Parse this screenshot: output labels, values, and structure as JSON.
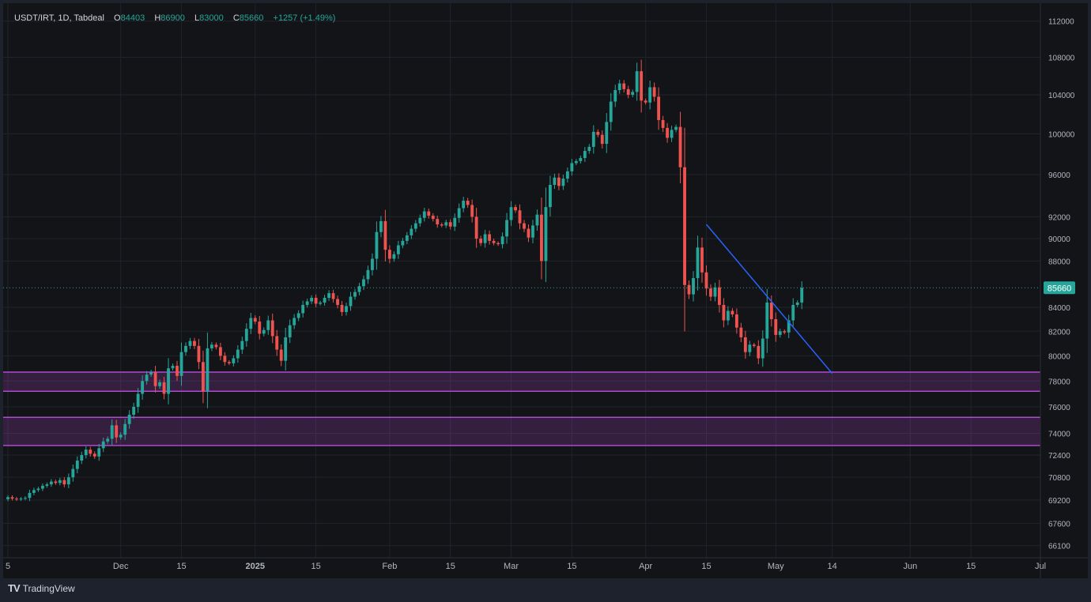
{
  "header": {
    "symbol": "USDT/IRT, 1D, Tabdeal",
    "open_label": "O",
    "open": "84403",
    "high_label": "H",
    "high": "86900",
    "low_label": "L",
    "low": "83000",
    "close_label": "C",
    "close": "85660",
    "change": "+1257 (+1.49%)"
  },
  "branding": {
    "logo": "TV",
    "name": "TradingView"
  },
  "colors": {
    "background": "#131417",
    "frame": "#1e222d",
    "up": "#26a69a",
    "down": "#ef5350",
    "zone": "#b04ad0",
    "trendline": "#2962ff",
    "text": "#b2b5be"
  },
  "chart_data": {
    "type": "candlestick",
    "y_scale": "log",
    "ylim": [
      65300,
      113500
    ],
    "price_ticks": [
      112000,
      108000,
      104000,
      100000,
      96000,
      92000,
      90000,
      88000,
      84000,
      82000,
      80000,
      78000,
      76000,
      74000,
      72400,
      70800,
      69200,
      67600,
      66100
    ],
    "last_price_label": "85660",
    "x_range": [
      "2024-11-05",
      "2025-07-01"
    ],
    "x_ticks": [
      {
        "date": "2024-11-05",
        "label": "5"
      },
      {
        "date": "2024-12-01",
        "label": "Dec"
      },
      {
        "date": "2024-12-15",
        "label": "15"
      },
      {
        "date": "2025-01-01",
        "label": "2025"
      },
      {
        "date": "2025-01-15",
        "label": "15"
      },
      {
        "date": "2025-02-01",
        "label": "Feb"
      },
      {
        "date": "2025-02-15",
        "label": "15"
      },
      {
        "date": "2025-03-01",
        "label": "Mar"
      },
      {
        "date": "2025-03-15",
        "label": "15"
      },
      {
        "date": "2025-04-01",
        "label": "Apr"
      },
      {
        "date": "2025-04-15",
        "label": "15"
      },
      {
        "date": "2025-05-01",
        "label": "May"
      },
      {
        "date": "2025-05-14",
        "label": "14"
      },
      {
        "date": "2025-06-01",
        "label": "Jun"
      },
      {
        "date": "2025-06-15",
        "label": "15"
      },
      {
        "date": "2025-07-01",
        "label": "Jul"
      }
    ],
    "start_date": "2024-11-05",
    "close": [
      69400,
      69300,
      69250,
      69300,
      69350,
      69700,
      69900,
      70000,
      70200,
      70300,
      70500,
      70400,
      70600,
      70300,
      70800,
      71400,
      72000,
      72400,
      72800,
      72500,
      72300,
      72900,
      73400,
      73600,
      74600,
      73700,
      73900,
      74700,
      75400,
      76000,
      77000,
      78000,
      78500,
      78700,
      77600,
      77900,
      77000,
      79000,
      79200,
      78400,
      80300,
      80800,
      81200,
      80800,
      79500,
      77200,
      80600,
      80900,
      80700,
      80000,
      79500,
      79400,
      79800,
      80500,
      81200,
      82200,
      83100,
      82800,
      81800,
      82100,
      82900,
      81600,
      80500,
      79600,
      81500,
      82500,
      83100,
      83500,
      84200,
      84500,
      84800,
      84300,
      84400,
      84800,
      85200,
      84700,
      84200,
      83600,
      84100,
      84900,
      85300,
      85800,
      86400,
      87200,
      88200,
      90600,
      91600,
      89000,
      88200,
      88600,
      89400,
      89800,
      90300,
      90900,
      91400,
      91900,
      92500,
      92100,
      91800,
      91300,
      91200,
      91500,
      91100,
      91900,
      92800,
      93500,
      93100,
      92000,
      90000,
      89600,
      90400,
      89800,
      89600,
      89500,
      90200,
      91700,
      92900,
      92600,
      91400,
      90900,
      90100,
      91200,
      92200,
      88000,
      92900,
      95000,
      95700,
      94900,
      95600,
      96300,
      97100,
      97300,
      97600,
      98300,
      98700,
      100200,
      99900,
      99000,
      101200,
      103300,
      104500,
      105200,
      104600,
      104000,
      104300,
      106500,
      103400,
      103200,
      104800,
      103800,
      101400,
      100600,
      99600,
      100400,
      100700,
      96700,
      85900,
      85100,
      86500,
      89200,
      87000,
      85600,
      84900,
      85700,
      84200,
      82900,
      83700,
      83400,
      82300,
      81500,
      80300,
      80900,
      80800,
      79800,
      81400,
      84400,
      83000,
      81700,
      82000,
      81900,
      82900,
      84200,
      84403,
      85660
    ]
  },
  "zones": [
    {
      "top": 78700,
      "bottom": 77200
    },
    {
      "top": 75200,
      "bottom": 73100
    }
  ],
  "trendline": {
    "from_date": "2025-04-15",
    "from_price": 91300,
    "to_date": "2025-05-14",
    "to_price": 78600
  }
}
